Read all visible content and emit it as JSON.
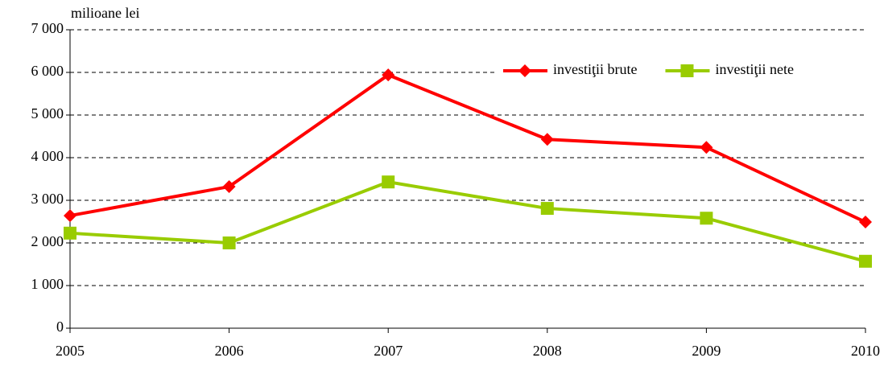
{
  "chart_data": {
    "type": "line",
    "y_label": "milioane lei",
    "categories": [
      "2005",
      "2006",
      "2007",
      "2008",
      "2009",
      "2010"
    ],
    "series": [
      {
        "name": "investiţii brute",
        "color": "#ff0000",
        "marker": "diamond",
        "values": [
          2640,
          3320,
          5940,
          4430,
          4240,
          2490
        ]
      },
      {
        "name": "investiţii nete",
        "color": "#99cc00",
        "marker": "square",
        "values": [
          2230,
          2000,
          3430,
          2810,
          2580,
          1570
        ]
      }
    ],
    "ylim": [
      0,
      7000
    ],
    "yticks": [
      0,
      {
        "value": 1000,
        "label": "1 000"
      },
      {
        "value": 2000,
        "label": "2 000"
      },
      {
        "value": 3000,
        "label": "3 000"
      },
      {
        "value": 4000,
        "label": "4 000"
      },
      {
        "value": 5000,
        "label": "5 000"
      },
      {
        "value": 6000,
        "label": "6 000"
      },
      {
        "value": 7000,
        "label": "7 000"
      }
    ],
    "grid": true,
    "legend": "upper right"
  }
}
